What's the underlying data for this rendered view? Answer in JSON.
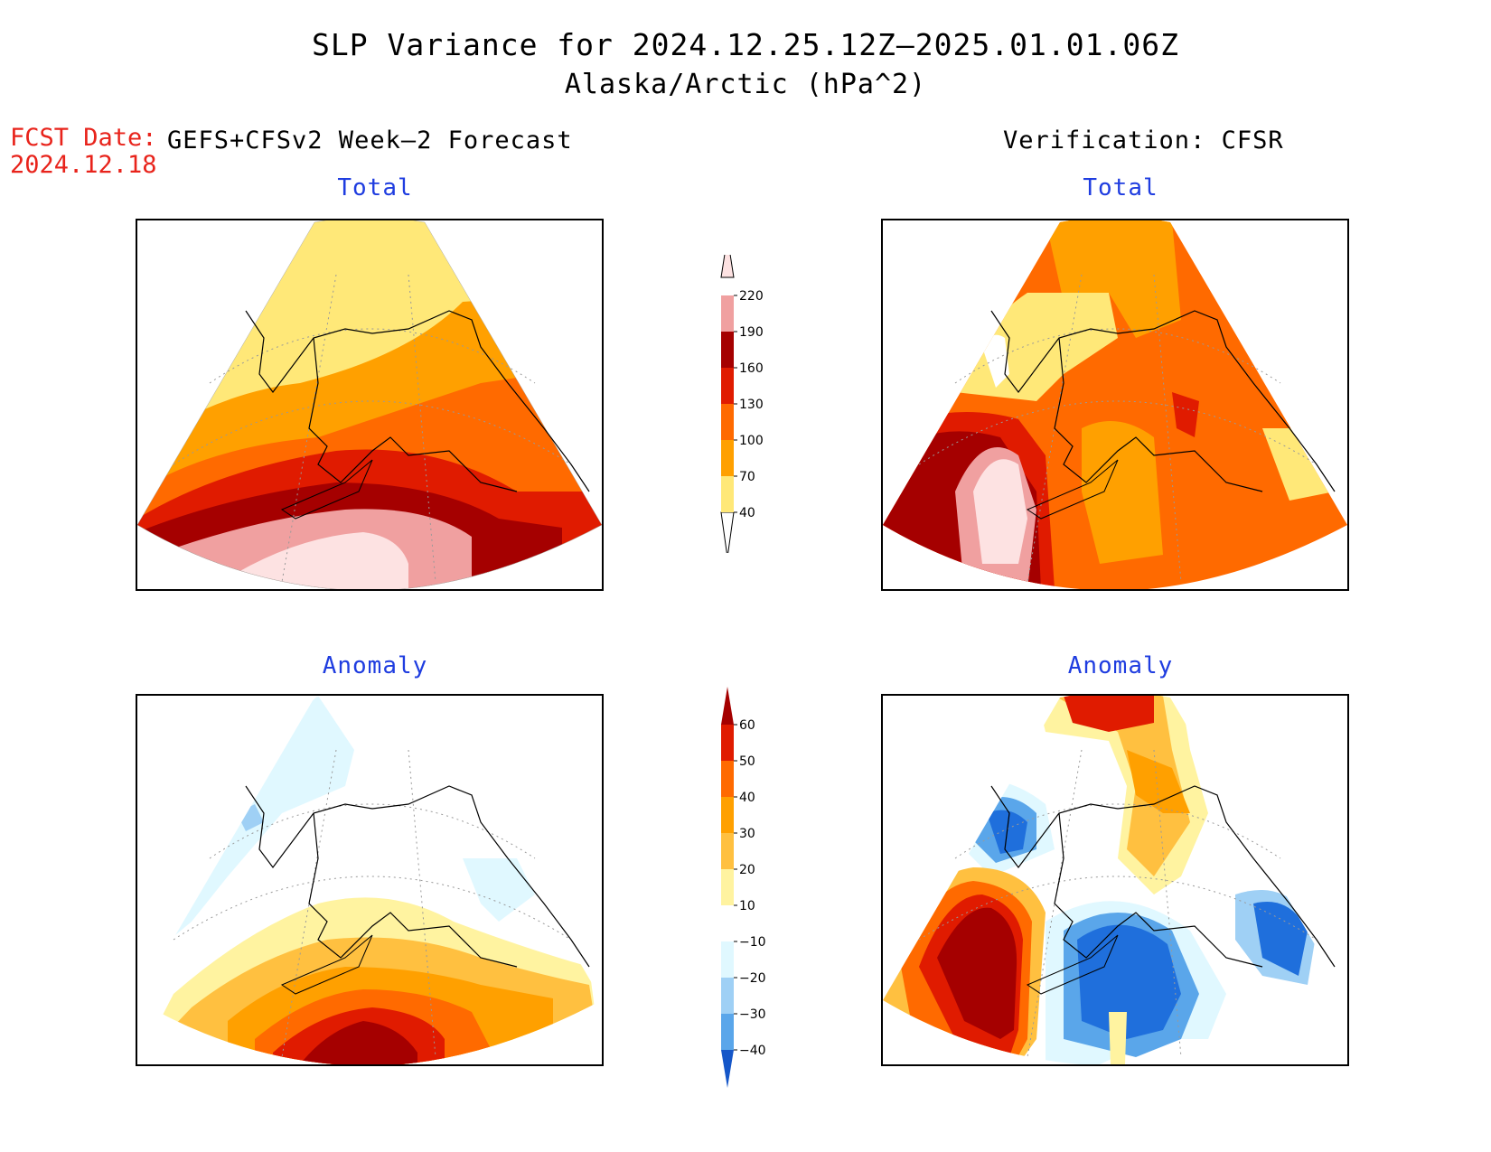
{
  "title_line1": "SLP Variance for 2024.12.25.12Z–2025.01.01.06Z",
  "title_line2": "Alaska/Arctic (hPa^2)",
  "fcst_label": "FCST Date:",
  "fcst_date": "2024.12.18",
  "left_header": "GEFS+CFSv2 Week–2 Forecast",
  "right_header": "Verification: CFSR",
  "panels": {
    "forecast_total_title": "Total",
    "forecast_anomaly_title": "Anomaly",
    "verification_total_title": "Total",
    "verification_anomaly_title": "Anomaly"
  },
  "total_colorbar": {
    "levels": [
      "40",
      "70",
      "100",
      "130",
      "160",
      "190",
      "220"
    ],
    "colors": [
      "#ffe878",
      "#ffa000",
      "#ff6a00",
      "#e01b00",
      "#a50000",
      "#f0a0a0",
      "#fde2e2"
    ]
  },
  "anomaly_colorbar": {
    "levels": [
      "60",
      "50",
      "40",
      "30",
      "20",
      "10",
      "−10",
      "−20",
      "−30",
      "−40"
    ],
    "colors": [
      "#a50000",
      "#e01b00",
      "#ff6a00",
      "#ffa000",
      "#ffc040",
      "#fff3a0",
      "#ffffff",
      "#e0f8ff",
      "#9fd0f5",
      "#5aa6ea",
      "#1f6fdc",
      "#1556c8"
    ]
  }
}
